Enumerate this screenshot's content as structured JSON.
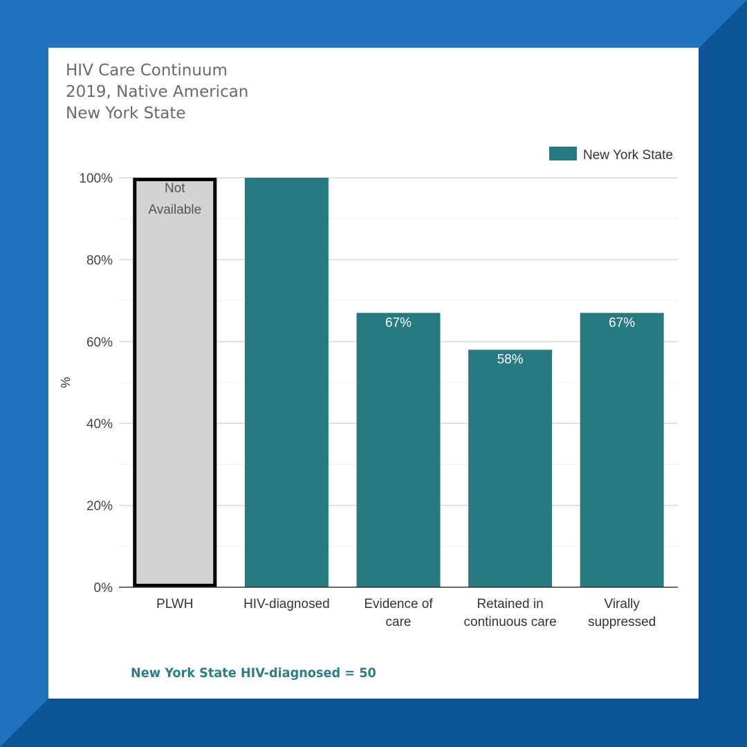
{
  "colors": {
    "frame_light": "#1f73bd",
    "frame_dark": "#0b5496",
    "card": "#ffffff",
    "bar": "#267a80",
    "not_available_fill": "#d3d3d3",
    "not_available_border": "#000000",
    "title": "#6a6a6a",
    "footnote": "#2c7f86"
  },
  "header": {
    "line1": "HIV Care Continuum",
    "line2": "2019, Native American",
    "line3": "New York State"
  },
  "footnote": "New York State HIV-diagnosed = 50",
  "chart_data": {
    "type": "bar",
    "title": "HIV Care Continuum",
    "ylabel": "%",
    "ylim": [
      0,
      100
    ],
    "yticks": [
      0,
      20,
      40,
      60,
      80,
      100
    ],
    "ytick_labels": [
      "0%",
      "20%",
      "40%",
      "60%",
      "80%",
      "100%"
    ],
    "grid": true,
    "legend": {
      "position": "top-right",
      "entries": [
        "New York State"
      ]
    },
    "categories": [
      [
        "PLWH"
      ],
      [
        "HIV-diagnosed"
      ],
      [
        "Evidence of",
        "care"
      ],
      [
        "Retained in",
        "continuous care"
      ],
      [
        "Virally",
        "suppressed"
      ]
    ],
    "series": [
      {
        "name": "New York State",
        "values": [
          null,
          100,
          67,
          58,
          67
        ],
        "data_labels": [
          "",
          "",
          "67%",
          "58%",
          "67%"
        ]
      }
    ],
    "not_available": {
      "category_index": 0,
      "label": [
        "Not",
        "Available"
      ]
    }
  }
}
